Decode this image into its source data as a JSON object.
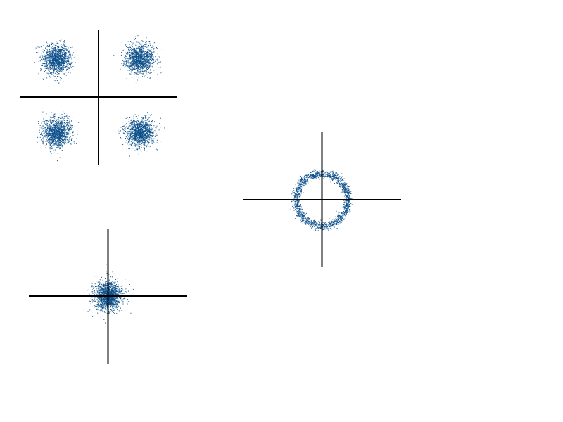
{
  "colors": {
    "background": "#ffffff",
    "axis": "#000000",
    "points": "#0b4f8a"
  },
  "chart_data": [
    {
      "type": "scatter",
      "title": "",
      "xlabel": "",
      "ylabel": "",
      "grid": false,
      "axes": "crosshair",
      "xlim": [
        -1.9,
        1.9
      ],
      "ylim": [
        -1.6,
        1.6
      ],
      "series": [
        {
          "shape": "cluster",
          "center": [
            -1.0,
            0.9
          ],
          "spread": 0.17,
          "count": 1400
        },
        {
          "shape": "cluster",
          "center": [
            1.0,
            0.9
          ],
          "spread": 0.17,
          "count": 1400
        },
        {
          "shape": "cluster",
          "center": [
            -1.0,
            -0.85
          ],
          "spread": 0.17,
          "count": 1400
        },
        {
          "shape": "cluster",
          "center": [
            1.0,
            -0.85
          ],
          "spread": 0.17,
          "count": 1400
        }
      ]
    },
    {
      "type": "scatter",
      "title": "",
      "xlabel": "",
      "ylabel": "",
      "grid": false,
      "axes": "crosshair",
      "xlim": [
        -1.9,
        1.9
      ],
      "ylim": [
        -1.6,
        1.6
      ],
      "series": [
        {
          "shape": "ring",
          "center": [
            0.0,
            0.0
          ],
          "radius": 0.62,
          "ring_width": 0.05,
          "count": 1800
        }
      ]
    },
    {
      "type": "scatter",
      "title": "",
      "xlabel": "",
      "ylabel": "",
      "grid": false,
      "axes": "crosshair",
      "xlim": [
        -1.9,
        1.9
      ],
      "ylim": [
        -1.6,
        1.6
      ],
      "series": [
        {
          "shape": "cluster",
          "center": [
            0.0,
            0.0
          ],
          "spread": 0.17,
          "count": 1700
        }
      ]
    }
  ]
}
